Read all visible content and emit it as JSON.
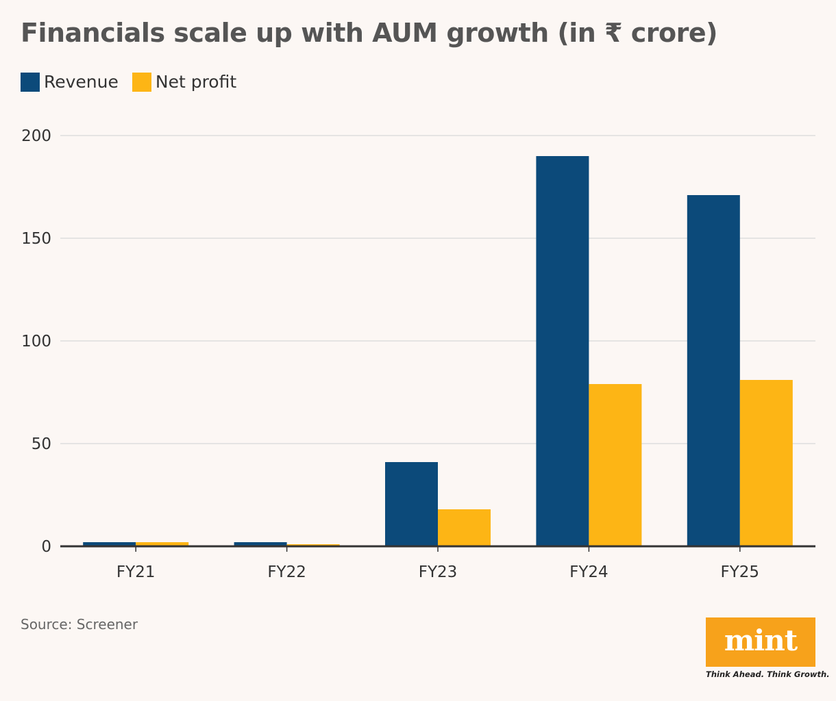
{
  "title": "Financials scale up with AUM growth (in ₹ crore)",
  "legend": [
    {
      "label": "Revenue",
      "color": "#0c4a7a"
    },
    {
      "label": "Net profit",
      "color": "#fdb515"
    }
  ],
  "chart_data": {
    "type": "bar",
    "title": "Financials scale up with AUM growth (in ₹ crore)",
    "categories": [
      "FY21",
      "FY22",
      "FY23",
      "FY24",
      "FY25"
    ],
    "series": [
      {
        "name": "Revenue",
        "color": "#0c4a7a",
        "values": [
          2,
          2,
          41,
          190,
          171
        ]
      },
      {
        "name": "Net profit",
        "color": "#fdb515",
        "values": [
          2,
          1,
          18,
          79,
          81
        ]
      }
    ],
    "yticks": [
      0,
      50,
      100,
      150,
      200
    ],
    "ylim": [
      0,
      200
    ],
    "xlabel": "",
    "ylabel": "",
    "grid": true,
    "legend_position": "top-left"
  },
  "source": "Source: Screener",
  "logo": {
    "text": "mint",
    "tagline": "Think Ahead. Think Growth.",
    "color": "#f7a21b"
  }
}
